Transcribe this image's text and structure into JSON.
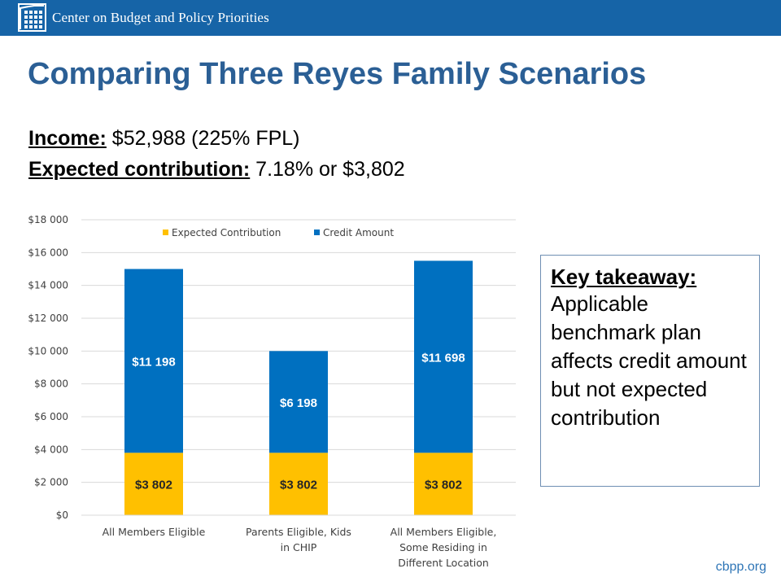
{
  "header": {
    "org_name": "Center on Budget and Policy Priorities",
    "logo_icon": "cbpp-logo-icon",
    "background_color": "#1664a7"
  },
  "title": "Comparing Three Reyes Family Scenarios",
  "income": {
    "label": "Income:",
    "value": " $52,988 (225% FPL)"
  },
  "expected_contribution": {
    "label": "Expected contribution:",
    "value": " 7.18% or $3,802"
  },
  "chart_data": {
    "type": "bar",
    "stacked": true,
    "title": "",
    "xlabel": "",
    "ylabel": "",
    "categories": [
      "All Members Eligible",
      "Parents Eligible, Kids in CHIP",
      "All Members Eligible, Some Residing in Different Location"
    ],
    "series": [
      {
        "name": "Expected Contribution",
        "color": "#ffc000",
        "values": [
          3802,
          3802,
          3802
        ],
        "labels": [
          "$3 802",
          "$3 802",
          "$3 802"
        ]
      },
      {
        "name": "Credit Amount",
        "color": "#0070c0",
        "values": [
          11198,
          6198,
          11698
        ],
        "labels": [
          "$11 198",
          "$6 198",
          "$11 698"
        ]
      }
    ],
    "ylim": [
      0,
      18000
    ],
    "yticks": [
      0,
      2000,
      4000,
      6000,
      8000,
      10000,
      12000,
      14000,
      16000,
      18000
    ],
    "ytick_labels": [
      "$0",
      "$2 000",
      "$4 000",
      "$6 000",
      "$8 000",
      "$10 000",
      "$12 000",
      "$14 000",
      "$16 000",
      "$18 000"
    ],
    "legend_position": "top",
    "grid": true
  },
  "takeaway": {
    "heading": "Key takeaway:",
    "text": "Applicable benchmark plan affects credit amount but not expected contribution"
  },
  "footer": {
    "url": "cbpp.org",
    "color": "#2e75b6"
  }
}
